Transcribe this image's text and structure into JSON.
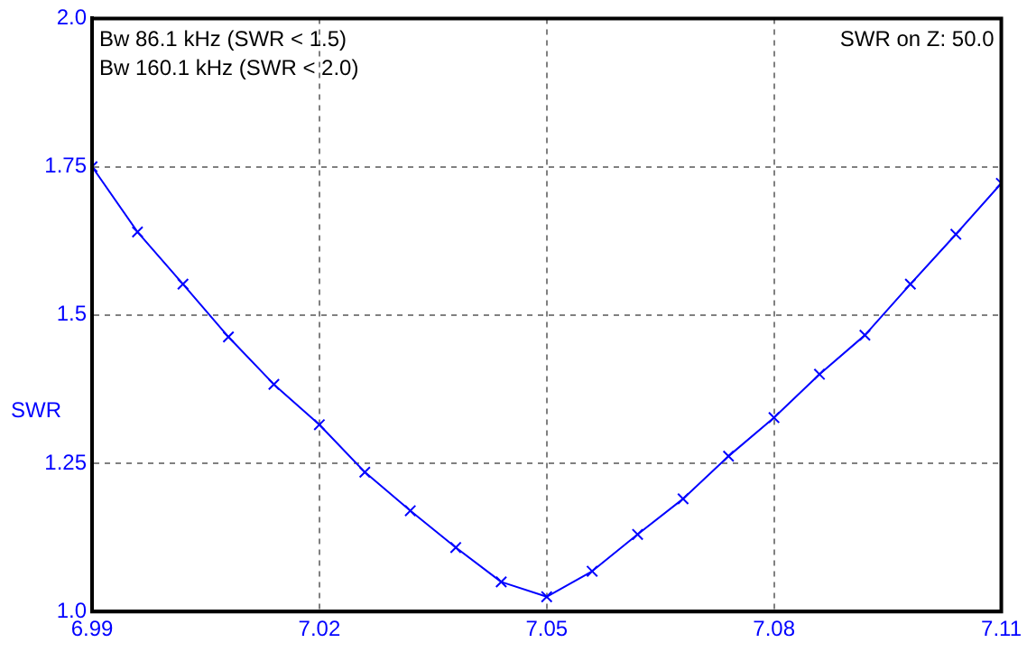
{
  "chart_data": {
    "type": "line",
    "ylabel": "SWR",
    "annotations": [
      "Bw 86.1 kHz (SWR < 1.5)",
      "Bw 160.1 kHz (SWR < 2.0)",
      "SWR on Z: 50.0"
    ],
    "x": [
      6.99,
      6.996,
      7.002,
      7.008,
      7.014,
      7.02,
      7.026,
      7.032,
      7.038,
      7.044,
      7.05,
      7.056,
      7.062,
      7.068,
      7.074,
      7.08,
      7.086,
      7.092,
      7.098,
      7.104,
      7.11
    ],
    "series": [
      {
        "color": "#0000ff",
        "values": [
          1.75,
          1.64,
          1.552,
          1.463,
          1.383,
          1.315,
          1.235,
          1.17,
          1.108,
          1.05,
          1.025,
          1.068,
          1.13,
          1.19,
          1.262,
          1.327,
          1.4,
          1.466,
          1.552,
          1.636,
          1.722
        ]
      }
    ],
    "xlim": [
      6.99,
      7.11
    ],
    "xticks": [
      6.99,
      7.02,
      7.05,
      7.08,
      7.11
    ],
    "ylim": [
      1.0,
      2.0
    ],
    "yticks": [
      {
        "value": 1.0,
        "label": "1.0"
      },
      1.25,
      {
        "value": 1.5,
        "label": "1.5"
      },
      1.75,
      {
        "value": 2.0,
        "label": "2.0"
      }
    ],
    "grid": true,
    "legend": false,
    "marker": "cross",
    "line_style": "solid"
  }
}
